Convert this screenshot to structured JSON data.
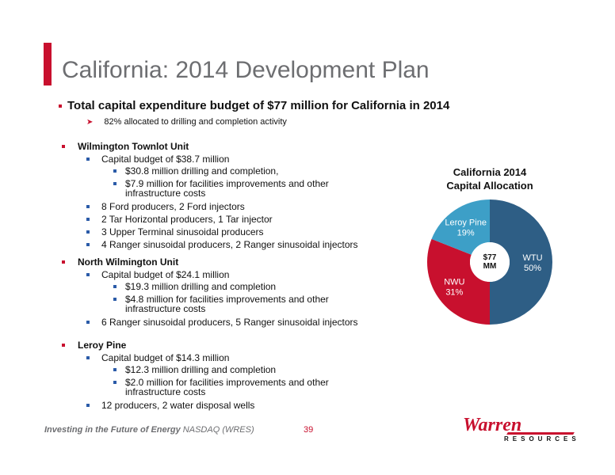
{
  "slide": {
    "title": "California: 2014 Development Plan",
    "headline": "Total capital expenditure budget of $77 million for California in 2014",
    "headline_sub": "82% allocated to drilling and completion activity",
    "units": [
      {
        "name": "Wilmington Townlot Unit",
        "items": [
          {
            "text": "Capital budget of $38.7 million",
            "subs": [
              "$30.8 million drilling and completion,",
              [
                "$7.9 million for facilities improvements and other",
                "infrastructure costs"
              ]
            ]
          },
          {
            "text": "8 Ford producers, 2 Ford injectors"
          },
          {
            "text": "2 Tar Horizontal producers, 1 Tar injector"
          },
          {
            "text": "3 Upper Terminal sinusoidal producers"
          },
          {
            "text": "4 Ranger sinusoidal producers, 2 Ranger sinusoidal injectors"
          }
        ]
      },
      {
        "name": "North Wilmington Unit",
        "items": [
          {
            "text": "Capital budget of $24.1 million",
            "subs": [
              "$19.3 million drilling and completion",
              [
                "$4.8 million for facilities improvements and other",
                "infrastructure costs"
              ]
            ]
          },
          {
            "text": "6 Ranger sinusoidal producers, 5 Ranger sinusoidal injectors"
          }
        ]
      },
      {
        "name": "Leroy Pine",
        "items": [
          {
            "text": "Capital budget of $14.3 million",
            "subs": [
              "$12.3 million drilling and completion",
              [
                "$2.0 million for facilities improvements and other",
                "infrastructure costs"
              ]
            ]
          },
          {
            "text": "12 producers, 2 water disposal wells"
          }
        ]
      }
    ]
  },
  "chart_data": {
    "type": "pie",
    "title_lines": [
      "California 2014",
      "Capital Allocation"
    ],
    "center_label": [
      "$77",
      "MM"
    ],
    "slices": [
      {
        "label": "WTU",
        "value": 50,
        "pct_label": "50%",
        "color": "#2e5e85"
      },
      {
        "label": "NWU",
        "value": 31,
        "pct_label": "31%",
        "color": "#c8102e"
      },
      {
        "label": "Leroy Pine",
        "value": 19,
        "pct_label": "19%",
        "color": "#3d9fc7"
      }
    ]
  },
  "footer": {
    "tagline_bold": "Investing in the Future of Energy",
    "tagline_rest": " NASDAQ (WRES)",
    "page_number": "39",
    "logo_word": "Warren",
    "logo_sub": "RESOURCES"
  },
  "colors": {
    "accent": "#c8102e",
    "bullet_blue": "#2b5ba8",
    "title_gray": "#6d6e71"
  }
}
